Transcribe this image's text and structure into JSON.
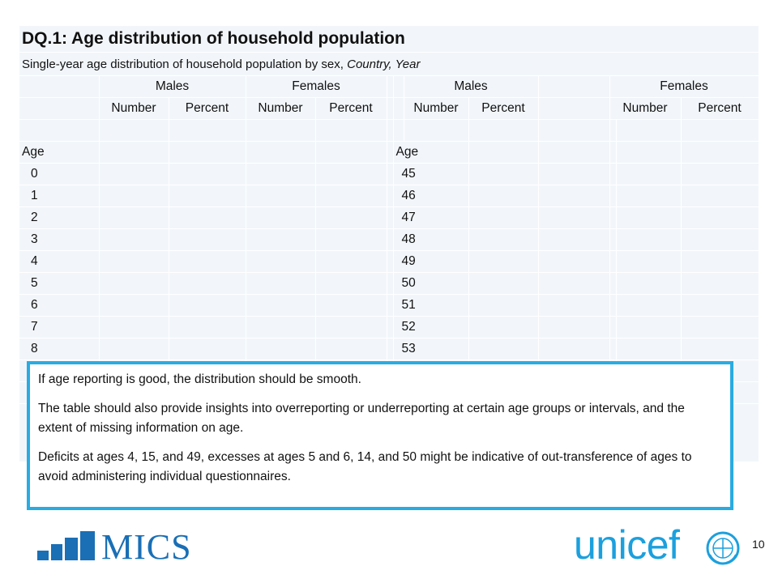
{
  "table": {
    "title": "DQ.1: Age distribution of household population",
    "subtitle_main": "Single-year age distribution of household population by sex, ",
    "subtitle_italic": "Country, Year",
    "group_headers": {
      "males": "Males",
      "females": "Females"
    },
    "sub_headers": {
      "number": "Number",
      "percent": "Percent"
    },
    "age_label": "Age",
    "ages_left": [
      "0",
      "1",
      "2",
      "3",
      "4",
      "5",
      "6",
      "7",
      "8",
      "",
      ""
    ],
    "ages_right": [
      "45",
      "46",
      "47",
      "48",
      "49",
      "50",
      "51",
      "52",
      "53",
      "",
      ""
    ]
  },
  "note": {
    "line1": "If age reporting is good, the distribution should be smooth.",
    "line2": "The table should also provide insights into overreporting  or underreporting  at certain age groups or intervals, and the extent of missing information on age.",
    "line3": "Deficits at ages 4, 15, and 49, excesses  at ages 5 and 6, 14, and 50 might be indicative of out-transference  of ages to avoid administering individual questionnaires."
  },
  "footer": {
    "mics_logo_text": "MICS",
    "unicef_logo_text": "unicef",
    "page_number": "10"
  },
  "colors": {
    "accent_blue": "#29abe2",
    "logo_blue": "#1a6fb5",
    "unicef_blue": "#1ca0dd",
    "table_bg": "#f2f6fa"
  }
}
